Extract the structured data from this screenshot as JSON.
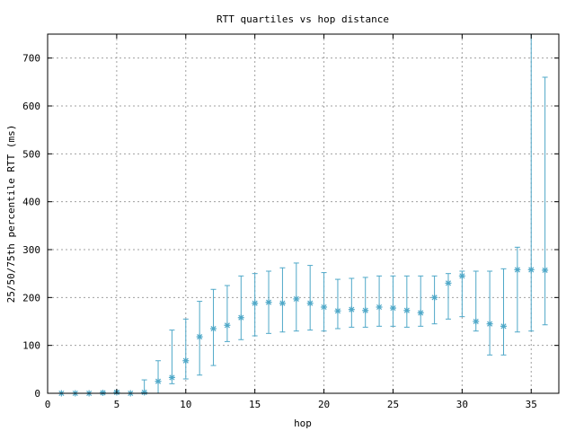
{
  "chart_data": {
    "type": "scatter",
    "title": "RTT quartiles vs hop distance",
    "xlabel": "hop",
    "ylabel": "25/50/75th percentile RTT (ms)",
    "xlim": [
      0,
      37
    ],
    "ylim": [
      0,
      750
    ],
    "xticks": [
      0,
      5,
      10,
      15,
      20,
      25,
      30,
      35
    ],
    "yticks": [
      0,
      100,
      200,
      300,
      400,
      500,
      600,
      700
    ],
    "grid": true,
    "legend": "none",
    "series_color": "#4fa8c8",
    "points": [
      {
        "hop": 1,
        "p25": 0,
        "p50": 0,
        "p75": 0
      },
      {
        "hop": 2,
        "p25": 0,
        "p50": 0,
        "p75": 0
      },
      {
        "hop": 3,
        "p25": 0,
        "p50": 0,
        "p75": 0
      },
      {
        "hop": 4,
        "p25": 0,
        "p50": 1,
        "p75": 2
      },
      {
        "hop": 5,
        "p25": 0,
        "p50": 2,
        "p75": 5
      },
      {
        "hop": 6,
        "p25": 0,
        "p50": 0,
        "p75": 0
      },
      {
        "hop": 7,
        "p25": 0,
        "p50": 2,
        "p75": 28
      },
      {
        "hop": 8,
        "p25": 0,
        "p50": 25,
        "p75": 68
      },
      {
        "hop": 9,
        "p25": 20,
        "p50": 33,
        "p75": 132
      },
      {
        "hop": 10,
        "p25": 30,
        "p50": 68,
        "p75": 155
      },
      {
        "hop": 11,
        "p25": 38,
        "p50": 118,
        "p75": 192
      },
      {
        "hop": 12,
        "p25": 58,
        "p50": 135,
        "p75": 217
      },
      {
        "hop": 13,
        "p25": 108,
        "p50": 142,
        "p75": 225
      },
      {
        "hop": 14,
        "p25": 112,
        "p50": 158,
        "p75": 245
      },
      {
        "hop": 15,
        "p25": 120,
        "p50": 188,
        "p75": 250
      },
      {
        "hop": 16,
        "p25": 125,
        "p50": 190,
        "p75": 255
      },
      {
        "hop": 17,
        "p25": 128,
        "p50": 188,
        "p75": 262
      },
      {
        "hop": 18,
        "p25": 130,
        "p50": 197,
        "p75": 272
      },
      {
        "hop": 19,
        "p25": 132,
        "p50": 188,
        "p75": 267
      },
      {
        "hop": 20,
        "p25": 130,
        "p50": 180,
        "p75": 252
      },
      {
        "hop": 21,
        "p25": 135,
        "p50": 172,
        "p75": 238
      },
      {
        "hop": 22,
        "p25": 138,
        "p50": 175,
        "p75": 240
      },
      {
        "hop": 23,
        "p25": 138,
        "p50": 173,
        "p75": 242
      },
      {
        "hop": 24,
        "p25": 140,
        "p50": 180,
        "p75": 245
      },
      {
        "hop": 25,
        "p25": 140,
        "p50": 178,
        "p75": 245
      },
      {
        "hop": 26,
        "p25": 138,
        "p50": 173,
        "p75": 245
      },
      {
        "hop": 27,
        "p25": 140,
        "p50": 168,
        "p75": 245
      },
      {
        "hop": 28,
        "p25": 145,
        "p50": 200,
        "p75": 245
      },
      {
        "hop": 29,
        "p25": 155,
        "p50": 230,
        "p75": 250
      },
      {
        "hop": 30,
        "p25": 160,
        "p50": 245,
        "p75": 255
      },
      {
        "hop": 31,
        "p25": 130,
        "p50": 150,
        "p75": 255
      },
      {
        "hop": 32,
        "p25": 80,
        "p50": 145,
        "p75": 255
      },
      {
        "hop": 33,
        "p25": 80,
        "p50": 140,
        "p75": 260
      },
      {
        "hop": 34,
        "p25": 128,
        "p50": 258,
        "p75": 305
      },
      {
        "hop": 35,
        "p25": 130,
        "p50": 258,
        "p75": 750
      },
      {
        "hop": 36,
        "p25": 143,
        "p50": 257,
        "p75": 660
      }
    ]
  }
}
